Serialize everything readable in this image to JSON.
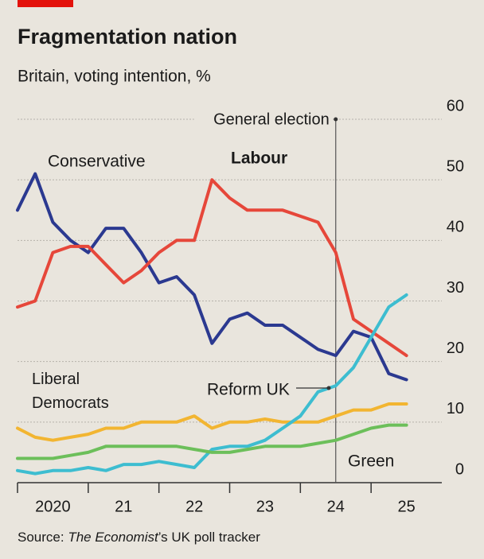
{
  "chart_data": {
    "type": "line",
    "title": "Fragmentation nation",
    "subtitle": "Britain, voting intention, %",
    "x": [
      2020,
      2020.25,
      2020.5,
      2020.75,
      2021,
      2021.25,
      2021.5,
      2021.75,
      2022,
      2022.25,
      2022.5,
      2022.75,
      2023,
      2023.25,
      2023.5,
      2023.75,
      2024,
      2024.25,
      2024.5,
      2024.75,
      2025,
      2025.25,
      2025.5
    ],
    "series": [
      {
        "name": "Conservative",
        "color": "#2b3990",
        "values": [
          45,
          51,
          43,
          40,
          38,
          42,
          42,
          38,
          33,
          34,
          31,
          23,
          27,
          28,
          26,
          26,
          24,
          22,
          21,
          25,
          24,
          18,
          17
        ]
      },
      {
        "name": "Labour",
        "color": "#e6473a",
        "values": [
          29,
          30,
          38,
          39,
          39,
          36,
          33,
          35,
          38,
          40,
          40,
          50,
          47,
          45,
          45,
          45,
          44,
          43,
          38,
          27,
          25,
          23,
          21
        ]
      },
      {
        "name": "Liberal Democrats",
        "color": "#f2b531",
        "values": [
          9,
          7.5,
          7,
          7.5,
          8,
          9,
          9,
          10,
          10,
          10,
          11,
          9,
          10,
          10,
          10.5,
          10,
          10,
          10,
          11,
          12,
          12,
          13,
          13
        ]
      },
      {
        "name": "Reform UK",
        "color": "#3dbdd0",
        "values": [
          2,
          1.5,
          2,
          2,
          2.5,
          2,
          3,
          3,
          3.5,
          3,
          2.5,
          5.5,
          6,
          6,
          7,
          9,
          11,
          15,
          16,
          19,
          24,
          29,
          31
        ]
      },
      {
        "name": "Green",
        "color": "#6cbf5a",
        "values": [
          4,
          4,
          4,
          4.5,
          5,
          6,
          6,
          6,
          6,
          6,
          5.5,
          5,
          5,
          5.5,
          6,
          6,
          6,
          6.5,
          7,
          8,
          9,
          9.5,
          9.5
        ]
      }
    ],
    "xlim": [
      2020,
      2026
    ],
    "xticks": [
      2020,
      {
        "value": 2021,
        "label": "21"
      },
      {
        "value": 2022,
        "label": "22"
      },
      {
        "value": 2023,
        "label": "23"
      },
      {
        "value": 2024,
        "label": "24"
      },
      {
        "value": 2025,
        "label": "25"
      }
    ],
    "ylim": [
      0,
      60
    ],
    "yticks": [
      0,
      10,
      20,
      30,
      40,
      50,
      60
    ],
    "grid": true,
    "annotations": [
      {
        "text": "General election",
        "x": 2024.5
      }
    ],
    "source": [
      "Source: ",
      "The Economist",
      "’s UK poll tracker"
    ]
  }
}
